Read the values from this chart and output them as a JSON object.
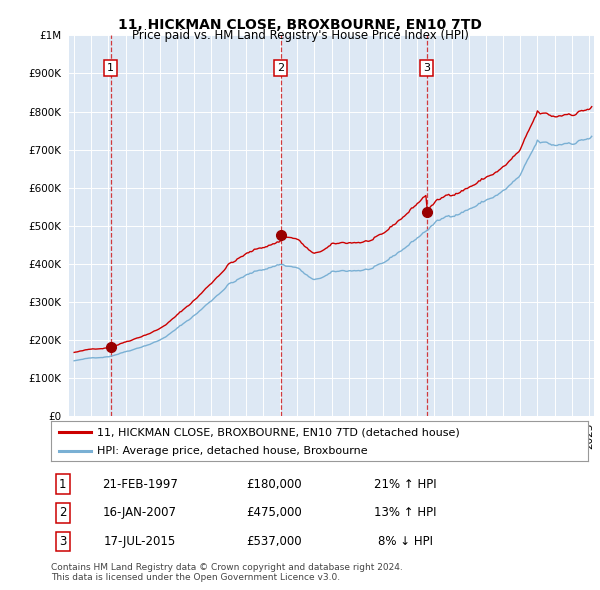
{
  "title": "11, HICKMAN CLOSE, BROXBOURNE, EN10 7TD",
  "subtitle": "Price paid vs. HM Land Registry's House Price Index (HPI)",
  "plot_bg_color": "#dde8f4",
  "sale_year_nums": [
    1997.12,
    2007.04,
    2015.54
  ],
  "sale_prices": [
    180000,
    475000,
    537000
  ],
  "sale_labels": [
    "1",
    "2",
    "3"
  ],
  "legend_line1": "11, HICKMAN CLOSE, BROXBOURNE, EN10 7TD (detached house)",
  "legend_line2": "HPI: Average price, detached house, Broxbourne",
  "footer1": "Contains HM Land Registry data © Crown copyright and database right 2024.",
  "footer2": "This data is licensed under the Open Government Licence v3.0.",
  "table_rows": [
    [
      "1",
      "21-FEB-1997",
      "£180,000",
      "21% ↑ HPI"
    ],
    [
      "2",
      "16-JAN-2007",
      "£475,000",
      "13% ↑ HPI"
    ],
    [
      "3",
      "17-JUL-2015",
      "£537,000",
      "8% ↓ HPI"
    ]
  ],
  "red_line_color": "#cc0000",
  "blue_line_color": "#7ab0d4",
  "marker_color": "#990000",
  "dashed_color": "#cc0000",
  "ylim_max": 1000000,
  "xlim_start": 1994.7,
  "xlim_end": 2025.3
}
